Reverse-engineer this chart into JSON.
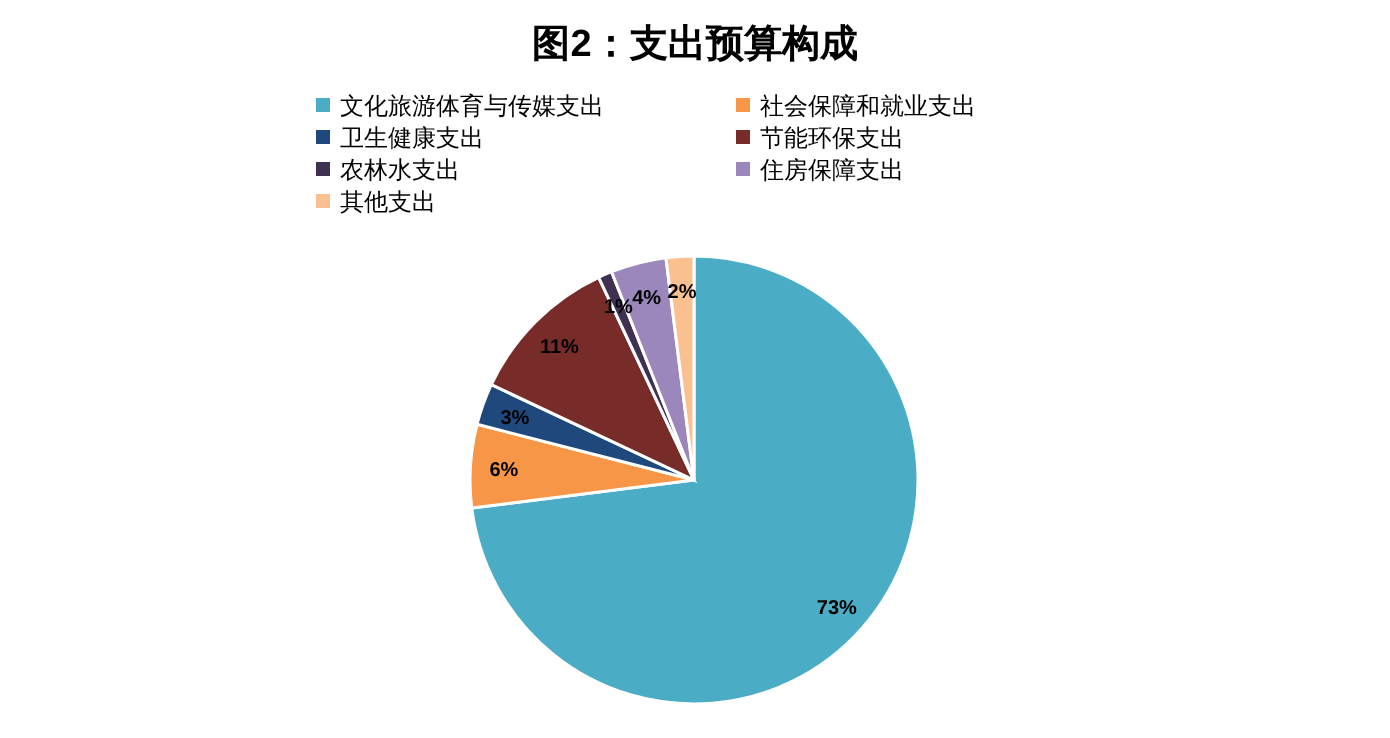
{
  "chart_data": {
    "type": "pie",
    "title": "图2：支出预算构成",
    "categories": [
      "文化旅游体育与传媒支出",
      "社会保障和就业支出",
      "卫生健康支出",
      "节能环保支出",
      "农林水支出",
      "住房保障支出",
      "其他支出"
    ],
    "values": [
      73,
      6,
      3,
      11,
      1,
      4,
      2
    ],
    "colors": [
      "#4bacc6",
      "#f79646",
      "#1f497d",
      "#772c2a",
      "#3f3151",
      "#9b87bb",
      "#fac090"
    ],
    "value_labels": [
      "73%",
      "6%",
      "3%",
      "11%",
      "1%",
      "4%",
      "2%"
    ],
    "legend": "top"
  }
}
